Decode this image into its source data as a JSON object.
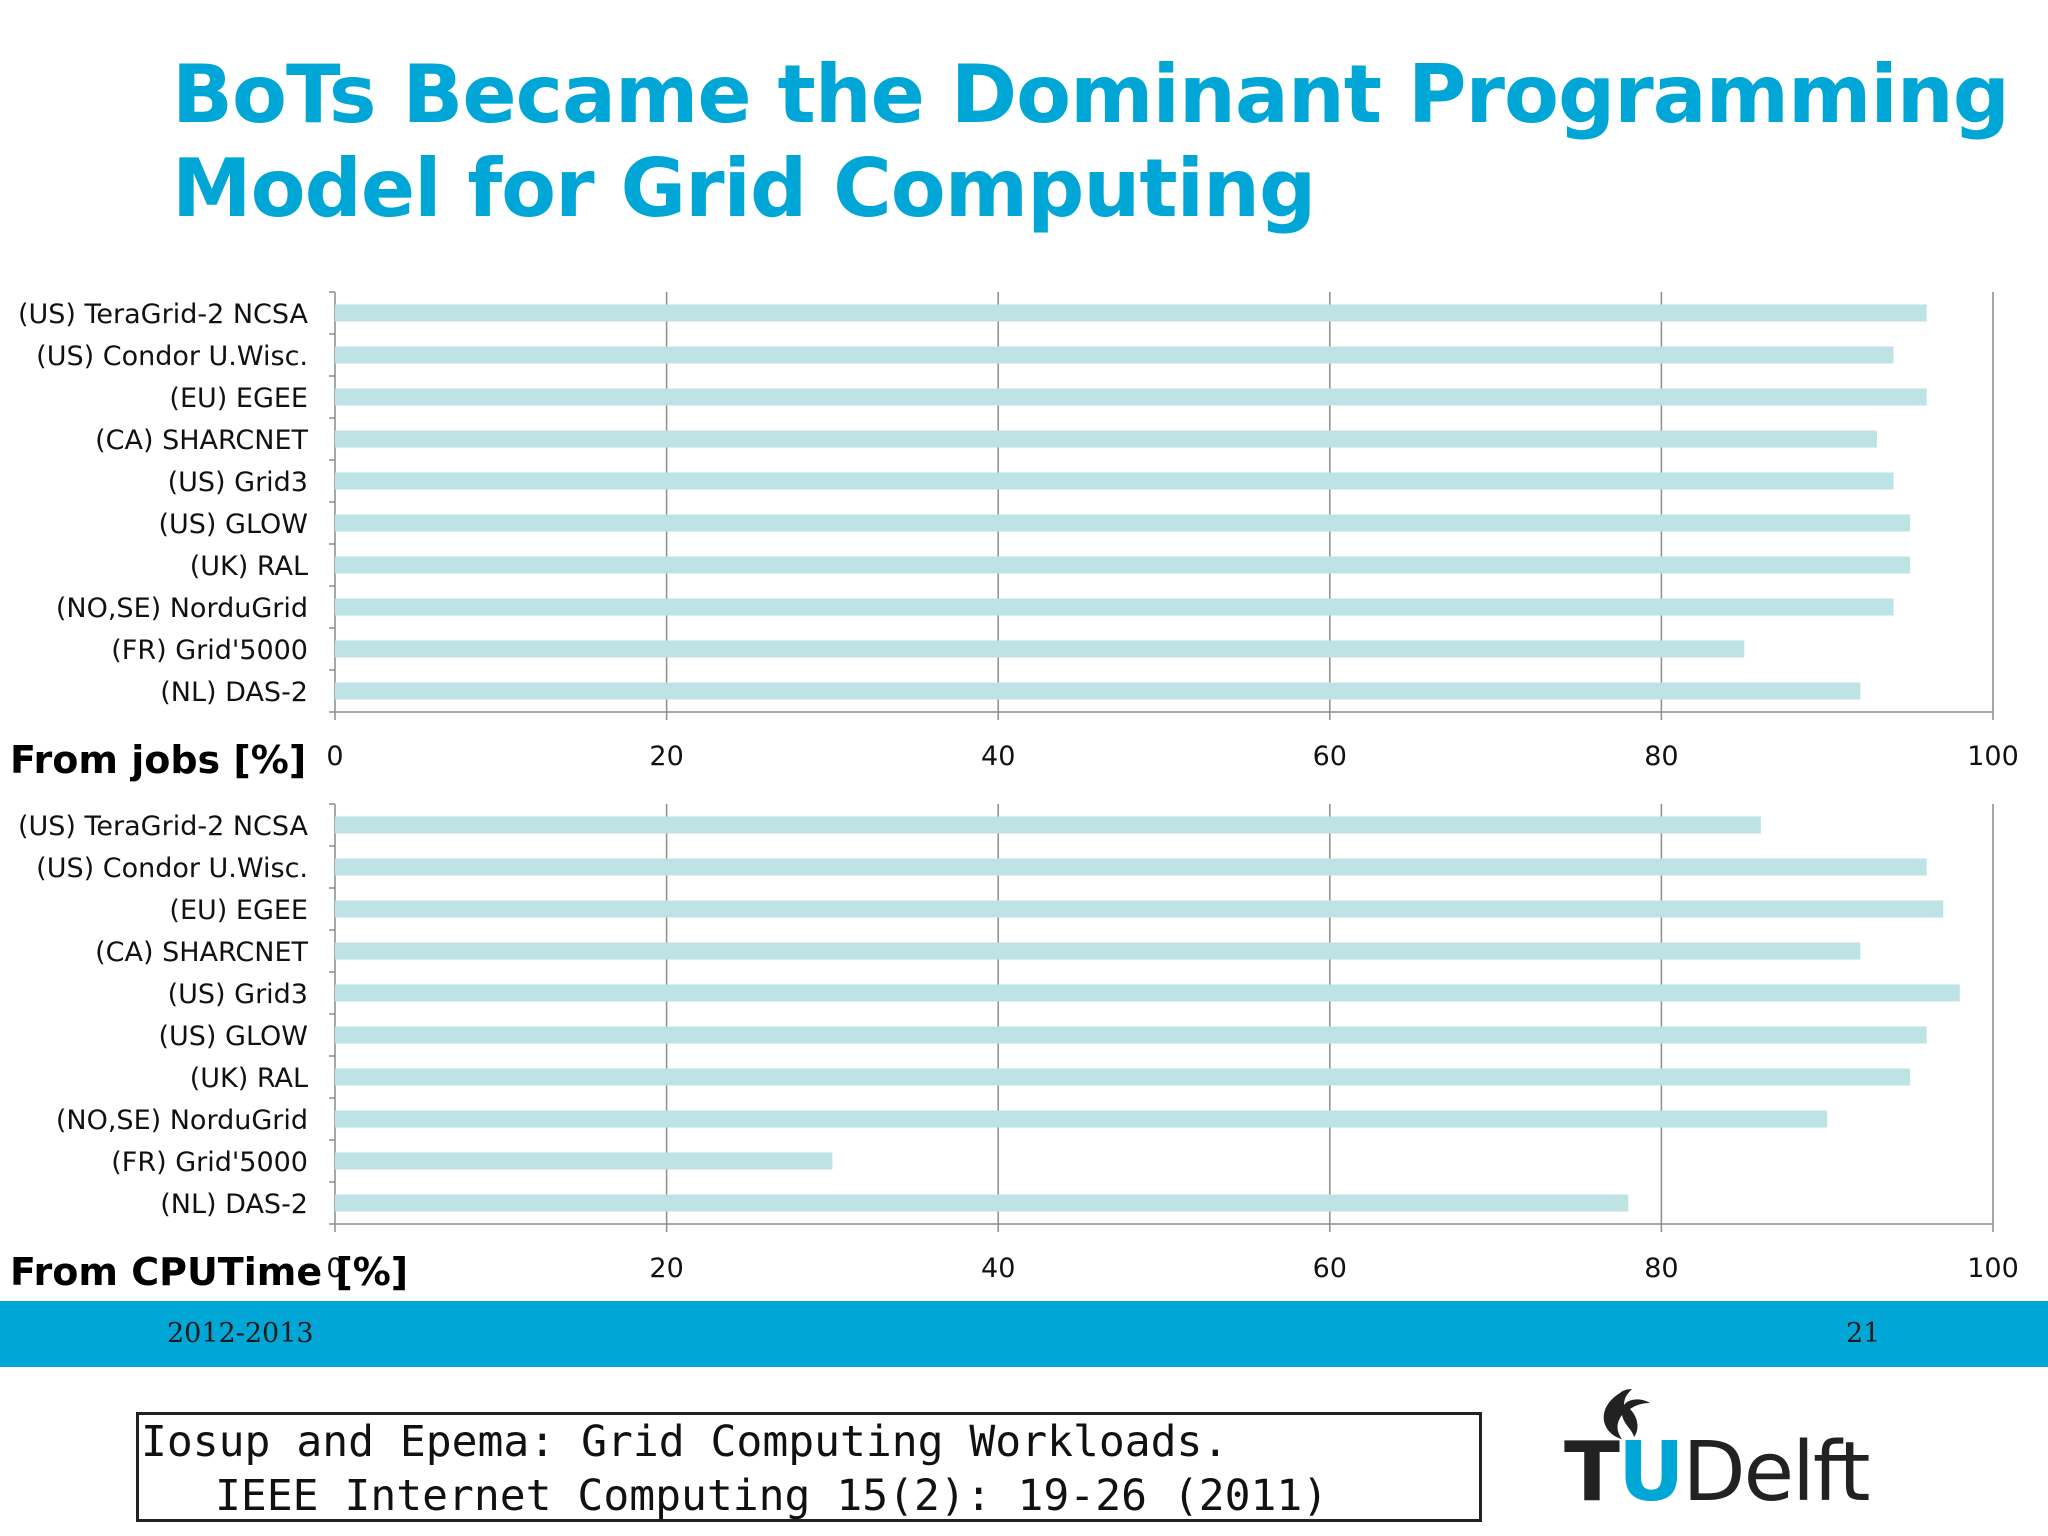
{
  "slide": {
    "title_line1": "BoTs Became the Dominant Programming",
    "title_line2": "Model for Grid Computing",
    "footer_left": "2012-2013",
    "footer_right": "21",
    "citation_line1": "Iosup and Epema: Grid Computing Workloads.",
    "citation_line2": "IEEE Internet Computing 15(2): 19-26 (2011)",
    "logo_text_tu_t": "T",
    "logo_text_tu_u": "U",
    "logo_text_delft": "Delft",
    "bar_color": "#bde3e5",
    "accent_color": "#00a6d6"
  },
  "chart_data": [
    {
      "type": "bar",
      "orientation": "horizontal",
      "label": "From jobs [%]",
      "categories": [
        "(US) TeraGrid-2 NCSA",
        "(US) Condor U.Wisc.",
        "(EU) EGEE",
        "(CA) SHARCNET",
        "(US) Grid3",
        "(US) GLOW",
        "(UK) RAL",
        "(NO,SE) NorduGrid",
        "(FR) Grid'5000",
        "(NL) DAS-2"
      ],
      "values": [
        96,
        94,
        96,
        93,
        94,
        95,
        95,
        94,
        85,
        92
      ],
      "xlim": [
        0,
        100
      ],
      "xticks": [
        0,
        20,
        40,
        60,
        80,
        100
      ],
      "grid": true
    },
    {
      "type": "bar",
      "orientation": "horizontal",
      "label": "From CPUTime [%]",
      "categories": [
        "(US) TeraGrid-2 NCSA",
        "(US) Condor U.Wisc.",
        "(EU) EGEE",
        "(CA) SHARCNET",
        "(US) Grid3",
        "(US) GLOW",
        "(UK) RAL",
        "(NO,SE) NorduGrid",
        "(FR) Grid'5000",
        "(NL) DAS-2"
      ],
      "values": [
        86,
        96,
        97,
        92,
        98,
        96,
        95,
        90,
        30,
        78
      ],
      "xlim": [
        0,
        100
      ],
      "xticks": [
        0,
        20,
        40,
        60,
        80,
        100
      ],
      "grid": true
    }
  ]
}
